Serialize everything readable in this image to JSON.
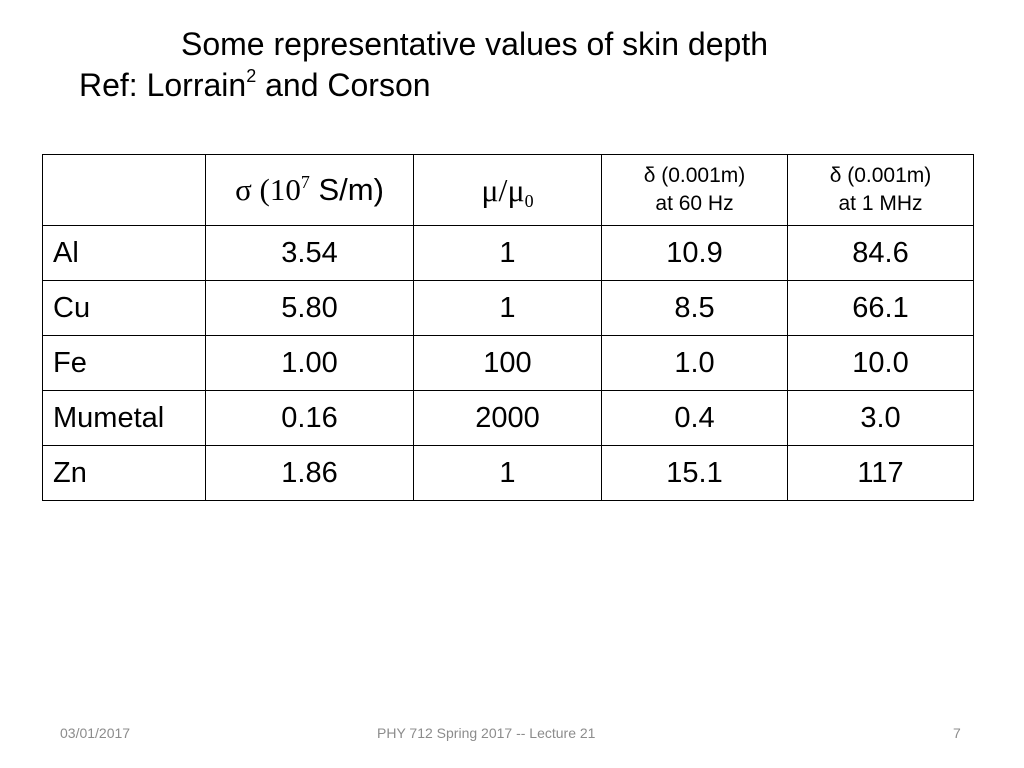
{
  "title": {
    "line1": "Some representative values of skin depth",
    "line2_prefix": "Ref: Lorrain",
    "line2_sup": "2",
    "line2_suffix": " and Corson"
  },
  "table": {
    "header": {
      "empty": "",
      "sigma_prefix": "σ (10",
      "sigma_exp": "7",
      "sigma_unit": " S/m)",
      "mu_prefix": "μ/μ",
      "mu_sub": "0",
      "delta60_line1": "δ (0.001m)",
      "delta60_line2": "at 60 Hz",
      "delta1m_line1": "δ (0.001m)",
      "delta1m_line2": "at 1 MHz"
    },
    "rows": [
      {
        "material": "Al",
        "sigma": "3.54",
        "mu": "1",
        "delta_60hz": "10.9",
        "delta_1mhz": "84.6"
      },
      {
        "material": "Cu",
        "sigma": "5.80",
        "mu": "1",
        "delta_60hz": "8.5",
        "delta_1mhz": "66.1"
      },
      {
        "material": "Fe",
        "sigma": "1.00",
        "mu": "100",
        "delta_60hz": "1.0",
        "delta_1mhz": "10.0"
      },
      {
        "material": "Mumetal",
        "sigma": "0.16",
        "mu": "2000",
        "delta_60hz": "0.4",
        "delta_1mhz": "3.0"
      },
      {
        "material": "Zn",
        "sigma": "1.86",
        "mu": "1",
        "delta_60hz": "15.1",
        "delta_1mhz": "117"
      }
    ]
  },
  "footer": {
    "date": "03/01/2017",
    "course": "PHY 712  Spring 2017 -- Lecture 21",
    "page": "7"
  }
}
